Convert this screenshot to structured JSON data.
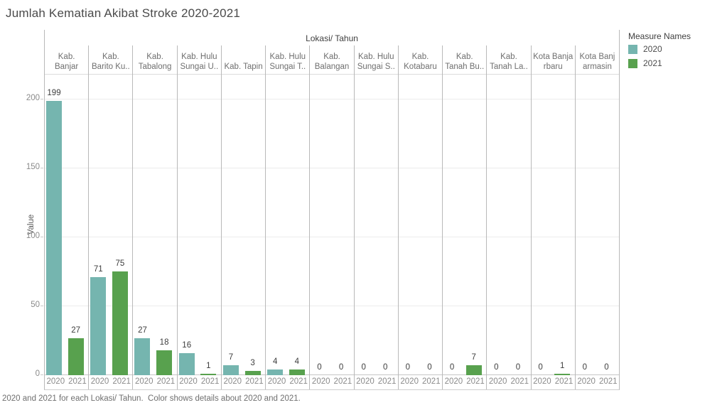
{
  "title": "Jumlah Kematian Akibat Stroke 2020-2021",
  "caption": "2020 and 2021 for each Lokasi/ Tahun.  Color shows details about 2020 and 2021.",
  "legend": {
    "title": "Measure Names",
    "items": [
      {
        "label": "2020",
        "color": "#75b5af"
      },
      {
        "label": "2021",
        "color": "#58a14e"
      }
    ]
  },
  "chart_data": {
    "type": "bar",
    "title": "Jumlah Kematian Akibat Stroke 2020-2021",
    "column_axis_title": "Lokasi/ Tahun",
    "ylabel": "Value",
    "yticks": [
      0,
      50,
      100,
      150,
      200
    ],
    "ylim": [
      0,
      218
    ],
    "grid": "horizontal",
    "legend_position": "top-right",
    "categories": [
      "Kab. Banjar",
      "Kab. Barito Ku..",
      "Kab. Tabalong",
      "Kab. Hulu Sungai U..",
      "Kab. Tapin",
      "Kab. Hulu Sungai T..",
      "Kab. Balangan",
      "Kab. Hulu Sungai S..",
      "Kab. Kotabaru",
      "Kab. Tanah Bu..",
      "Kab. Tanah La..",
      "Kota Banjarbaru",
      "Kota Banjarmasin"
    ],
    "category_display": [
      "Kab.\nBanjar",
      "Kab.\nBarito Ku..",
      "Kab.\nTabalong",
      "Kab. Hulu\nSungai U..",
      "Kab. Tapin",
      "Kab. Hulu\nSungai T..",
      "Kab.\nBalangan",
      "Kab. Hulu\nSungai S..",
      "Kab.\nKotabaru",
      "Kab.\nTanah Bu..",
      "Kab.\nTanah La..",
      "Kota Banja\nrbaru",
      "Kota Banj\narmasin"
    ],
    "x_tick_labels": [
      "2020",
      "2021"
    ],
    "series": [
      {
        "name": "2020",
        "color": "#75b5af",
        "values": [
          199,
          71,
          27,
          16,
          7,
          4,
          0,
          0,
          0,
          0,
          0,
          0,
          0
        ]
      },
      {
        "name": "2021",
        "color": "#58a14e",
        "values": [
          27,
          75,
          18,
          1,
          3,
          4,
          0,
          0,
          0,
          7,
          0,
          1,
          0
        ]
      }
    ]
  }
}
